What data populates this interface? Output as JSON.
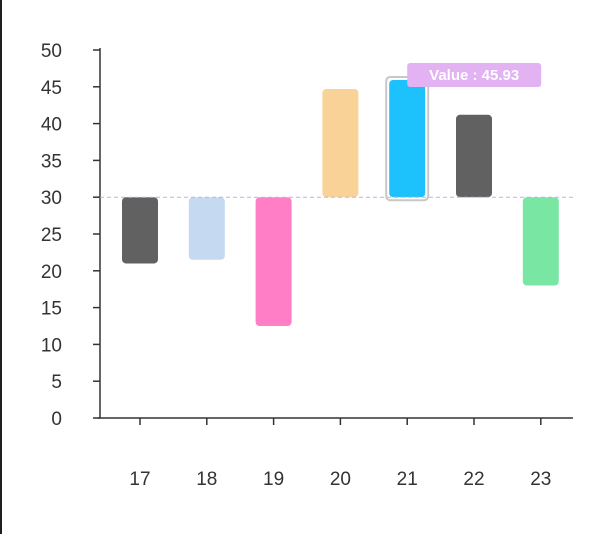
{
  "chart_data": {
    "type": "bar",
    "subtype": "floating",
    "categories": [
      "17",
      "18",
      "19",
      "20",
      "21",
      "22",
      "23"
    ],
    "series": [
      {
        "bars": [
          {
            "category": "17",
            "low": 21.0,
            "high": 30.0,
            "color": "#616161"
          },
          {
            "category": "18",
            "low": 21.5,
            "high": 30.0,
            "color": "#c5d9f1"
          },
          {
            "category": "19",
            "low": 12.5,
            "high": 30.0,
            "color": "#ff7ec5"
          },
          {
            "category": "20",
            "low": 30.0,
            "high": 44.7,
            "color": "#f8d296"
          },
          {
            "category": "21",
            "low": 30.0,
            "high": 45.93,
            "color": "#1dc1fb"
          },
          {
            "category": "22",
            "low": 30.0,
            "high": 41.2,
            "color": "#616161"
          },
          {
            "category": "23",
            "low": 18.0,
            "high": 30.0,
            "color": "#7ae6a4"
          }
        ]
      }
    ],
    "baseline": 30,
    "ylim": [
      0,
      50
    ],
    "yticks": [
      "0",
      "5",
      "10",
      "15",
      "20",
      "25",
      "30",
      "35",
      "40",
      "45",
      "50"
    ],
    "highlighted_category": "21",
    "tooltip": {
      "text": "Value : 45.93",
      "color": "#e2b2f3"
    },
    "grid": false,
    "legend": "none",
    "xlabel": "",
    "ylabel": "",
    "title": ""
  }
}
